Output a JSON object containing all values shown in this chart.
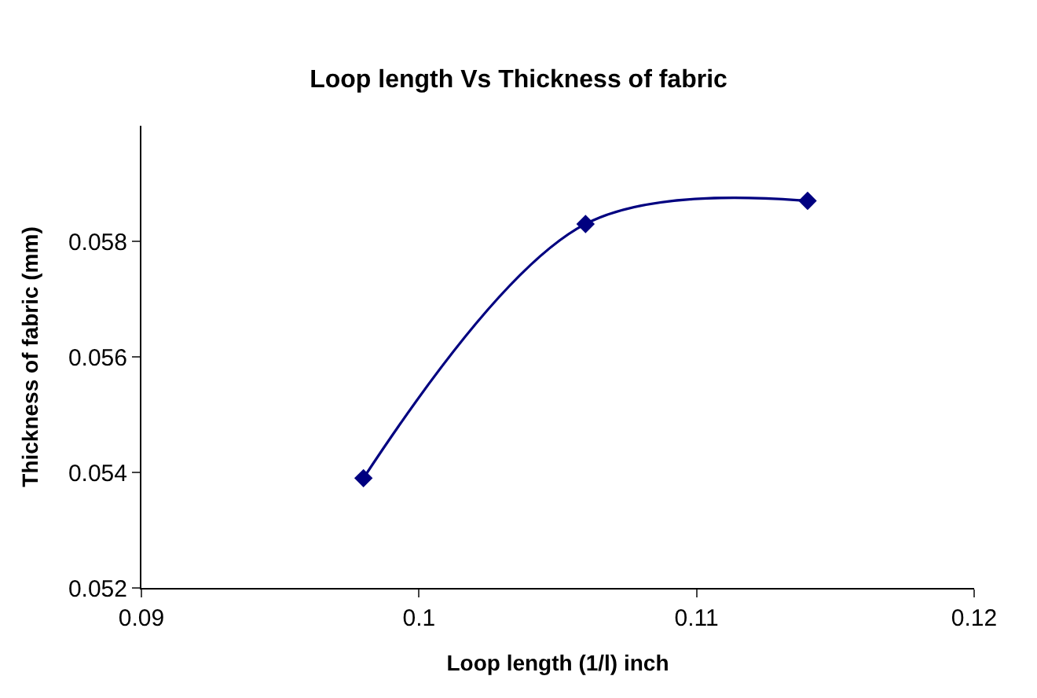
{
  "chart_data": {
    "type": "line",
    "title": "Loop length Vs Thickness of fabric",
    "xlabel": "Loop length (1/l) inch",
    "ylabel": "Thickness of fabric (mm)",
    "x": [
      0.098,
      0.106,
      0.114
    ],
    "series": [
      {
        "color": "#000080",
        "values": [
          0.0539,
          0.0583,
          0.0587
        ]
      }
    ],
    "xlim": [
      0.09,
      0.12
    ],
    "xticks": [
      0.09,
      {
        "value": 0.1,
        "label": "0.1"
      },
      0.11,
      0.12
    ],
    "ylim": [
      0.052,
      0.06
    ],
    "yticks": [
      0.052,
      0.054,
      0.056,
      0.058
    ],
    "marker": "diamond",
    "line_style": "solid"
  }
}
